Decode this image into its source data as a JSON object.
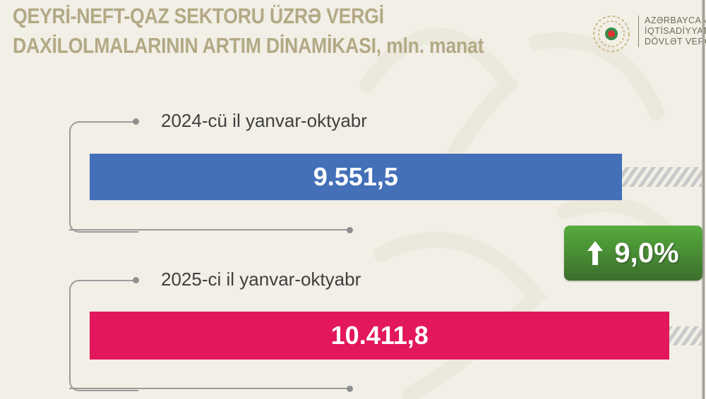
{
  "title_lines": [
    "QEYRİ-NEFT-QAZ SEKTORU ÜZRƏ VERGİ",
    "DAXİLOLMALARININ ARTIM DİNAMİKASI, mln. manat"
  ],
  "org_lines": [
    "AZƏRBAYCAN R",
    "İQTİSADİYYAT N",
    "DÖVLƏT VERGİ X"
  ],
  "colors": {
    "background": "#f1efe6",
    "bar_2024": "#4470b8",
    "bar_2025": "#e2175c",
    "badge": "#4a8d34",
    "title": "#b3a985"
  },
  "badge": {
    "icon": "arrow-up-icon",
    "text": "9,0%"
  },
  "chart_data": {
    "type": "bar",
    "orientation": "horizontal",
    "title": "QEYRİ-NEFT-QAZ SEKTORU ÜZRƏ VERGİ DAXİLOLMALARININ ARTIM DİNAMİKASI, mln. manat",
    "categories": [
      "2024-cü il yanvar-oktyabr",
      "2025-ci il yanvar-oktyabr"
    ],
    "values": [
      9551.5,
      10411.8
    ],
    "value_labels": [
      "9.551,5",
      "10.411,8"
    ],
    "growth_label": "9,0%",
    "grid": false
  }
}
